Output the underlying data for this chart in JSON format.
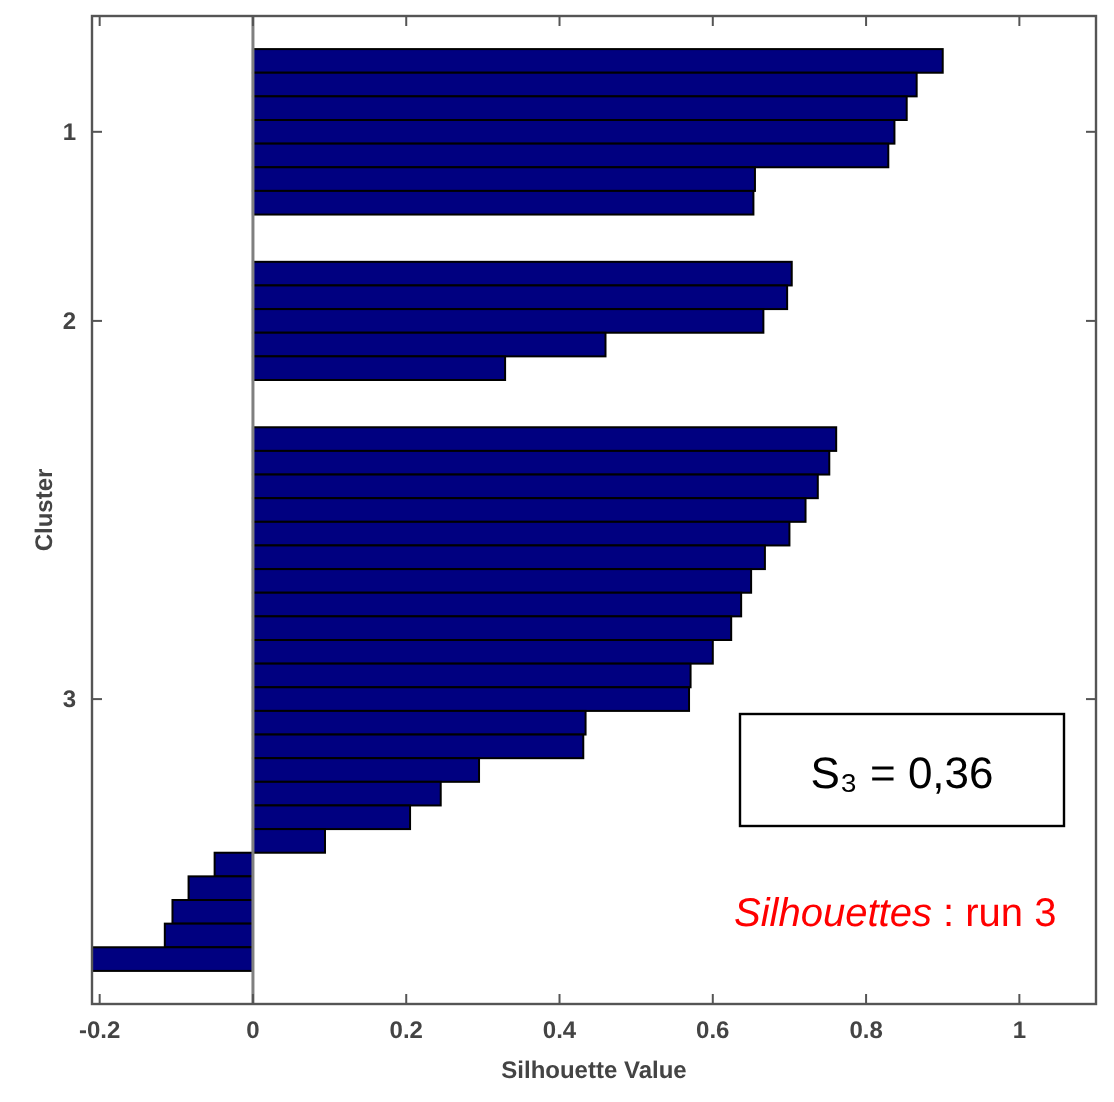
{
  "chart_data": {
    "type": "bar",
    "orientation": "horizontal",
    "xlabel": "Silhouette Value",
    "ylabel": "Cluster",
    "categories": [
      null,
      null,
      null,
      "1",
      null,
      null,
      null,
      null,
      null,
      null,
      null,
      "2",
      null,
      null,
      null,
      null,
      null,
      null,
      null,
      null,
      null,
      null,
      null,
      null,
      null,
      null,
      null,
      "3",
      null,
      null,
      null,
      null,
      null,
      null,
      null,
      null,
      null,
      null,
      null
    ],
    "values": [
      0.9,
      0.866,
      0.853,
      0.837,
      0.829,
      0.655,
      0.653,
      null,
      null,
      0.703,
      0.697,
      0.666,
      0.46,
      0.329,
      null,
      null,
      0.761,
      0.752,
      0.737,
      0.721,
      0.7,
      0.668,
      0.65,
      0.637,
      0.624,
      0.6,
      0.571,
      0.569,
      0.434,
      0.431,
      0.295,
      0.245,
      0.205,
      0.094,
      -0.05,
      -0.084,
      -0.105,
      -0.115,
      -0.21
    ],
    "color": "#000080",
    "xlim": [
      -0.21,
      1.1
    ],
    "xticks": [
      -0.2,
      0,
      0.2,
      0.4,
      0.6,
      0.8,
      1
    ],
    "ref_lines": [
      {
        "axis": "x",
        "value": 0,
        "color": "#808080"
      }
    ],
    "annotations": [
      "S₃ = 0,36",
      "Silhouettes : run 3"
    ]
  }
}
